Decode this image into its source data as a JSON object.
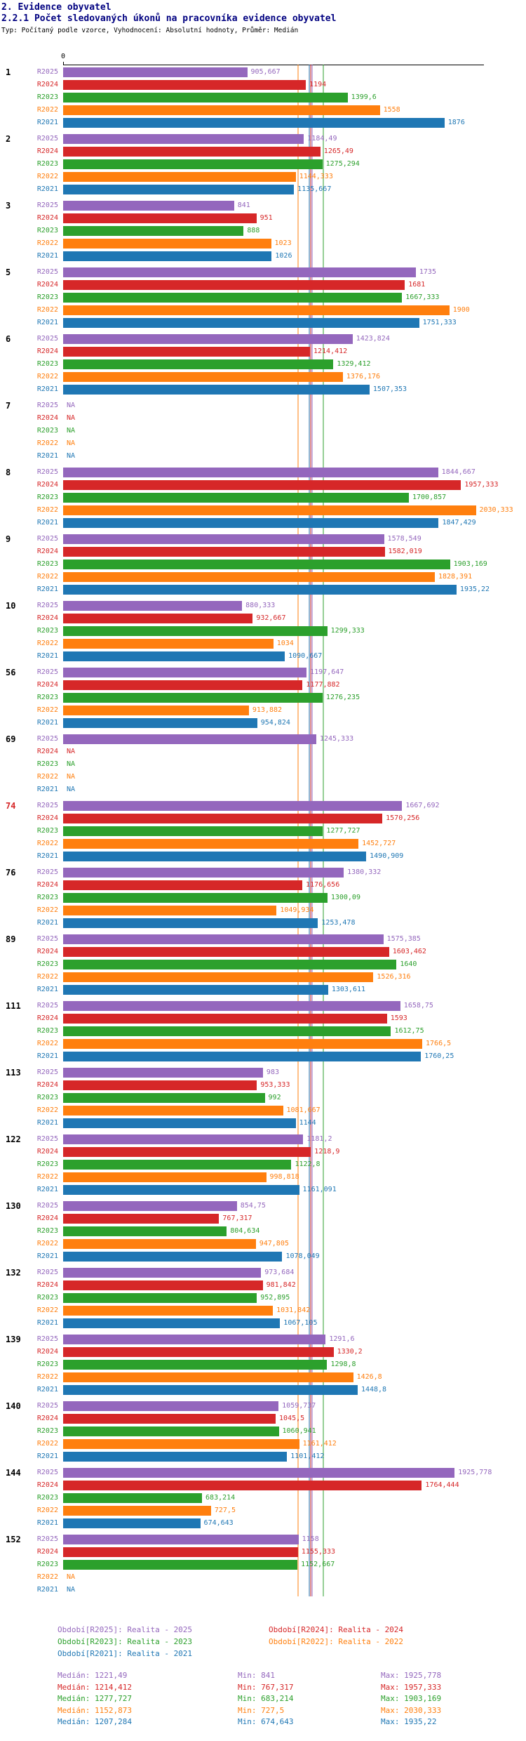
{
  "header": {
    "title": "2. Evidence obyvatel",
    "subtitle": "2.2.1 Počet sledovaných úkonů na pracovníka evidence obyvatel",
    "meta": "Typ: Počítaný podle vzorce, Vyhodnocení: Absolutní hodnoty, Průměr: Medián"
  },
  "colors": {
    "R2025": "#9467bd",
    "R2024": "#d62728",
    "R2023": "#2ca02c",
    "R2022": "#ff7f0e",
    "R2021": "#1f77b4",
    "title": "#000080",
    "highlight_group": "#d62728"
  },
  "chart_data": {
    "type": "bar",
    "orientation": "horizontal",
    "title": "2.2.1 Počet sledovaných úkonů na pracovníka evidence obyvatel",
    "x_axis": {
      "zero_label": "0",
      "range": [
        0,
        2070
      ]
    },
    "series_order": [
      "R2025",
      "R2024",
      "R2023",
      "R2022",
      "R2021"
    ],
    "na_label": "NA",
    "groups": [
      {
        "label": "1",
        "highlight": false,
        "bars": [
          {
            "series": "R2025",
            "value": 905.667,
            "label": "905,667"
          },
          {
            "series": "R2024",
            "value": 1194,
            "label": "1194"
          },
          {
            "series": "R2023",
            "value": 1399.6,
            "label": "1399,6"
          },
          {
            "series": "R2022",
            "value": 1558,
            "label": "1558"
          },
          {
            "series": "R2021",
            "value": 1876,
            "label": "1876"
          }
        ]
      },
      {
        "label": "2",
        "highlight": false,
        "bars": [
          {
            "series": "R2025",
            "value": 1184.49,
            "label": "1184,49"
          },
          {
            "series": "R2024",
            "value": 1265.49,
            "label": "1265,49"
          },
          {
            "series": "R2023",
            "value": 1275.294,
            "label": "1275,294"
          },
          {
            "series": "R2022",
            "value": 1144.333,
            "label": "1144,333"
          },
          {
            "series": "R2021",
            "value": 1135.667,
            "label": "1135,667"
          }
        ]
      },
      {
        "label": "3",
        "highlight": false,
        "bars": [
          {
            "series": "R2025",
            "value": 841,
            "label": "841"
          },
          {
            "series": "R2024",
            "value": 951,
            "label": "951"
          },
          {
            "series": "R2023",
            "value": 888,
            "label": "888"
          },
          {
            "series": "R2022",
            "value": 1023,
            "label": "1023"
          },
          {
            "series": "R2021",
            "value": 1026,
            "label": "1026"
          }
        ]
      },
      {
        "label": "5",
        "highlight": false,
        "bars": [
          {
            "series": "R2025",
            "value": 1735,
            "label": "1735"
          },
          {
            "series": "R2024",
            "value": 1681,
            "label": "1681"
          },
          {
            "series": "R2023",
            "value": 1667.333,
            "label": "1667,333"
          },
          {
            "series": "R2022",
            "value": 1900,
            "label": "1900"
          },
          {
            "series": "R2021",
            "value": 1751.333,
            "label": "1751,333"
          }
        ]
      },
      {
        "label": "6",
        "highlight": false,
        "bars": [
          {
            "series": "R2025",
            "value": 1423.824,
            "label": "1423,824"
          },
          {
            "series": "R2024",
            "value": 1214.412,
            "label": "1214,412"
          },
          {
            "series": "R2023",
            "value": 1329.412,
            "label": "1329,412"
          },
          {
            "series": "R2022",
            "value": 1376.176,
            "label": "1376,176"
          },
          {
            "series": "R2021",
            "value": 1507.353,
            "label": "1507,353"
          }
        ]
      },
      {
        "label": "7",
        "highlight": false,
        "bars": [
          {
            "series": "R2025",
            "value": null,
            "label": "NA"
          },
          {
            "series": "R2024",
            "value": null,
            "label": "NA"
          },
          {
            "series": "R2023",
            "value": null,
            "label": "NA"
          },
          {
            "series": "R2022",
            "value": null,
            "label": "NA"
          },
          {
            "series": "R2021",
            "value": null,
            "label": "NA"
          }
        ]
      },
      {
        "label": "8",
        "highlight": false,
        "bars": [
          {
            "series": "R2025",
            "value": 1844.667,
            "label": "1844,667"
          },
          {
            "series": "R2024",
            "value": 1957.333,
            "label": "1957,333"
          },
          {
            "series": "R2023",
            "value": 1700.857,
            "label": "1700,857"
          },
          {
            "series": "R2022",
            "value": 2030.333,
            "label": "2030,333"
          },
          {
            "series": "R2021",
            "value": 1847.429,
            "label": "1847,429"
          }
        ]
      },
      {
        "label": "9",
        "highlight": false,
        "bars": [
          {
            "series": "R2025",
            "value": 1578.549,
            "label": "1578,549"
          },
          {
            "series": "R2024",
            "value": 1582.019,
            "label": "1582,019"
          },
          {
            "series": "R2023",
            "value": 1903.169,
            "label": "1903,169"
          },
          {
            "series": "R2022",
            "value": 1828.391,
            "label": "1828,391"
          },
          {
            "series": "R2021",
            "value": 1935.22,
            "label": "1935,22"
          }
        ]
      },
      {
        "label": "10",
        "highlight": false,
        "bars": [
          {
            "series": "R2025",
            "value": 880.333,
            "label": "880,333"
          },
          {
            "series": "R2024",
            "value": 932.667,
            "label": "932,667"
          },
          {
            "series": "R2023",
            "value": 1299.333,
            "label": "1299,333"
          },
          {
            "series": "R2022",
            "value": 1034,
            "label": "1034"
          },
          {
            "series": "R2021",
            "value": 1090.667,
            "label": "1090,667"
          }
        ]
      },
      {
        "label": "56",
        "highlight": false,
        "bars": [
          {
            "series": "R2025",
            "value": 1197.647,
            "label": "1197,647"
          },
          {
            "series": "R2024",
            "value": 1177.882,
            "label": "1177,882"
          },
          {
            "series": "R2023",
            "value": 1276.235,
            "label": "1276,235"
          },
          {
            "series": "R2022",
            "value": 913.882,
            "label": "913,882"
          },
          {
            "series": "R2021",
            "value": 954.824,
            "label": "954,824"
          }
        ]
      },
      {
        "label": "69",
        "highlight": false,
        "bars": [
          {
            "series": "R2025",
            "value": 1245.333,
            "label": "1245,333"
          },
          {
            "series": "R2024",
            "value": null,
            "label": "NA"
          },
          {
            "series": "R2023",
            "value": null,
            "label": "NA"
          },
          {
            "series": "R2022",
            "value": null,
            "label": "NA"
          },
          {
            "series": "R2021",
            "value": null,
            "label": "NA"
          }
        ]
      },
      {
        "label": "74",
        "highlight": true,
        "bars": [
          {
            "series": "R2025",
            "value": 1667.692,
            "label": "1667,692"
          },
          {
            "series": "R2024",
            "value": 1570.256,
            "label": "1570,256"
          },
          {
            "series": "R2023",
            "value": 1277.727,
            "label": "1277,727"
          },
          {
            "series": "R2022",
            "value": 1452.727,
            "label": "1452,727"
          },
          {
            "series": "R2021",
            "value": 1490.909,
            "label": "1490,909"
          }
        ]
      },
      {
        "label": "76",
        "highlight": false,
        "bars": [
          {
            "series": "R2025",
            "value": 1380.332,
            "label": "1380,332"
          },
          {
            "series": "R2024",
            "value": 1176.656,
            "label": "1176,656"
          },
          {
            "series": "R2023",
            "value": 1300.09,
            "label": "1300,09"
          },
          {
            "series": "R2022",
            "value": 1049.934,
            "label": "1049,934"
          },
          {
            "series": "R2021",
            "value": 1253.478,
            "label": "1253,478"
          }
        ]
      },
      {
        "label": "89",
        "highlight": false,
        "bars": [
          {
            "series": "R2025",
            "value": 1575.385,
            "label": "1575,385"
          },
          {
            "series": "R2024",
            "value": 1603.462,
            "label": "1603,462"
          },
          {
            "series": "R2023",
            "value": 1640,
            "label": "1640"
          },
          {
            "series": "R2022",
            "value": 1526.316,
            "label": "1526,316"
          },
          {
            "series": "R2021",
            "value": 1303.611,
            "label": "1303,611"
          }
        ]
      },
      {
        "label": "111",
        "highlight": false,
        "bars": [
          {
            "series": "R2025",
            "value": 1658.75,
            "label": "1658,75"
          },
          {
            "series": "R2024",
            "value": 1593,
            "label": "1593"
          },
          {
            "series": "R2023",
            "value": 1612.75,
            "label": "1612,75"
          },
          {
            "series": "R2022",
            "value": 1766.5,
            "label": "1766,5"
          },
          {
            "series": "R2021",
            "value": 1760.25,
            "label": "1760,25"
          }
        ]
      },
      {
        "label": "113",
        "highlight": false,
        "bars": [
          {
            "series": "R2025",
            "value": 983,
            "label": "983"
          },
          {
            "series": "R2024",
            "value": 953.333,
            "label": "953,333"
          },
          {
            "series": "R2023",
            "value": 992,
            "label": "992"
          },
          {
            "series": "R2022",
            "value": 1081.667,
            "label": "1081,667"
          },
          {
            "series": "R2021",
            "value": 1144,
            "label": "1144"
          }
        ]
      },
      {
        "label": "122",
        "highlight": false,
        "bars": [
          {
            "series": "R2025",
            "value": 1181.2,
            "label": "1181,2"
          },
          {
            "series": "R2024",
            "value": 1218.9,
            "label": "1218,9"
          },
          {
            "series": "R2023",
            "value": 1122.8,
            "label": "1122,8"
          },
          {
            "series": "R2022",
            "value": 998.818,
            "label": "998,818"
          },
          {
            "series": "R2021",
            "value": 1161.091,
            "label": "1161,091"
          }
        ]
      },
      {
        "label": "130",
        "highlight": false,
        "bars": [
          {
            "series": "R2025",
            "value": 854.75,
            "label": "854,75"
          },
          {
            "series": "R2024",
            "value": 767.317,
            "label": "767,317"
          },
          {
            "series": "R2023",
            "value": 804.634,
            "label": "804,634"
          },
          {
            "series": "R2022",
            "value": 947.805,
            "label": "947,805"
          },
          {
            "series": "R2021",
            "value": 1078.049,
            "label": "1078,049"
          }
        ]
      },
      {
        "label": "132",
        "highlight": false,
        "bars": [
          {
            "series": "R2025",
            "value": 973.684,
            "label": "973,684"
          },
          {
            "series": "R2024",
            "value": 981.842,
            "label": "981,842"
          },
          {
            "series": "R2023",
            "value": 952.895,
            "label": "952,895"
          },
          {
            "series": "R2022",
            "value": 1031.842,
            "label": "1031,842"
          },
          {
            "series": "R2021",
            "value": 1067.105,
            "label": "1067,105"
          }
        ]
      },
      {
        "label": "139",
        "highlight": false,
        "bars": [
          {
            "series": "R2025",
            "value": 1291.6,
            "label": "1291,6"
          },
          {
            "series": "R2024",
            "value": 1330.2,
            "label": "1330,2"
          },
          {
            "series": "R2023",
            "value": 1298.8,
            "label": "1298,8"
          },
          {
            "series": "R2022",
            "value": 1426.8,
            "label": "1426,8"
          },
          {
            "series": "R2021",
            "value": 1448.8,
            "label": "1448,8"
          }
        ]
      },
      {
        "label": "140",
        "highlight": false,
        "bars": [
          {
            "series": "R2025",
            "value": 1059.737,
            "label": "1059,737"
          },
          {
            "series": "R2024",
            "value": 1045.5,
            "label": "1045,5"
          },
          {
            "series": "R2023",
            "value": 1060.941,
            "label": "1060,941"
          },
          {
            "series": "R2022",
            "value": 1161.412,
            "label": "1161,412"
          },
          {
            "series": "R2021",
            "value": 1101.412,
            "label": "1101,412"
          }
        ]
      },
      {
        "label": "144",
        "highlight": false,
        "bars": [
          {
            "series": "R2025",
            "value": 1925.778,
            "label": "1925,778"
          },
          {
            "series": "R2024",
            "value": 1764.444,
            "label": "1764,444"
          },
          {
            "series": "R2023",
            "value": 683.214,
            "label": "683,214"
          },
          {
            "series": "R2022",
            "value": 727.5,
            "label": "727,5"
          },
          {
            "series": "R2021",
            "value": 674.643,
            "label": "674,643"
          }
        ]
      },
      {
        "label": "152",
        "highlight": false,
        "bars": [
          {
            "series": "R2025",
            "value": 1158,
            "label": "1158"
          },
          {
            "series": "R2024",
            "value": 1155.333,
            "label": "1155,333"
          },
          {
            "series": "R2023",
            "value": 1152.667,
            "label": "1152,667"
          },
          {
            "series": "R2022",
            "value": null,
            "label": "NA"
          },
          {
            "series": "R2021",
            "value": null,
            "label": "NA"
          }
        ]
      }
    ],
    "medians": [
      {
        "series": "R2025",
        "value": 1221.49
      },
      {
        "series": "R2024",
        "value": 1214.412
      },
      {
        "series": "R2023",
        "value": 1277.727
      },
      {
        "series": "R2022",
        "value": 1152.873
      },
      {
        "series": "R2021",
        "value": 1207.284
      }
    ]
  },
  "legend": {
    "columns": [
      [
        {
          "series": "R2025",
          "label": "Období[R2025]: Realita - 2025"
        },
        {
          "series": "R2023",
          "label": "Období[R2023]: Realita - 2023"
        },
        {
          "series": "R2021",
          "label": "Období[R2021]: Realita - 2021"
        }
      ],
      [
        {
          "series": "R2024",
          "label": "Období[R2024]: Realita - 2024"
        },
        {
          "series": "R2022",
          "label": "Období[R2022]: Realita - 2022"
        }
      ]
    ]
  },
  "stats": [
    {
      "series": "R2025",
      "median": "Medián: 1221,49",
      "min": "Min: 841",
      "max": "Max: 1925,778"
    },
    {
      "series": "R2024",
      "median": "Medián: 1214,412",
      "min": "Min: 767,317",
      "max": "Max: 1957,333"
    },
    {
      "series": "R2023",
      "median": "Medián: 1277,727",
      "min": "Min: 683,214",
      "max": "Max: 1903,169"
    },
    {
      "series": "R2022",
      "median": "Medián: 1152,873",
      "min": "Min: 727,5",
      "max": "Max: 2030,333"
    },
    {
      "series": "R2021",
      "median": "Medián: 1207,284",
      "min": "Min: 674,643",
      "max": "Max: 1935,22"
    }
  ]
}
